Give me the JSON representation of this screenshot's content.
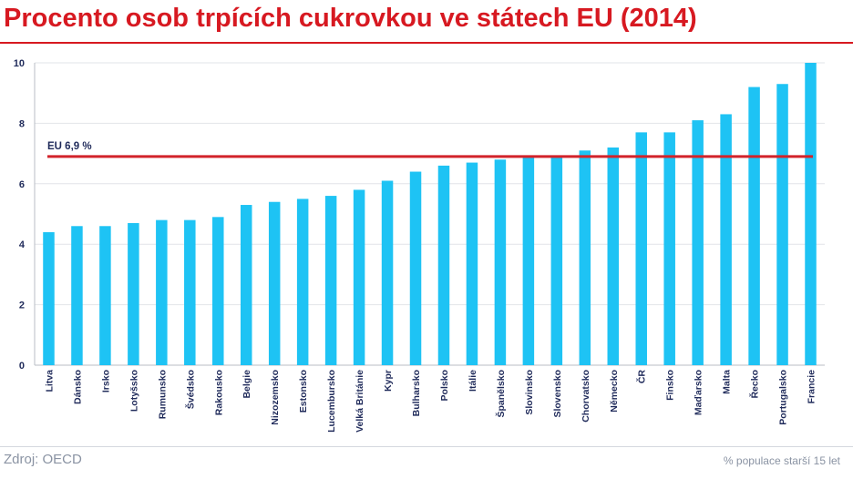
{
  "title": "Procento osob trpících cukrovkou ve státech EU (2014)",
  "source": "Zdroj: OECD",
  "unit_note": "% populace starší 15 let",
  "colors": {
    "title": "#d71921",
    "bar": "#1ec3f4",
    "reference": "#d2232a",
    "axis_text": "#1f2a5a",
    "grid": "#e2e4e8"
  },
  "chart_data": {
    "type": "bar",
    "title": "Procento osob trpících cukrovkou ve státech EU (2014)",
    "xlabel": "",
    "ylabel": "",
    "ylim": [
      0,
      10
    ],
    "yticks": [
      0,
      2,
      4,
      6,
      8,
      10
    ],
    "grid": true,
    "categories": [
      "Litva",
      "Dánsko",
      "Irsko",
      "Lotyšsko",
      "Rumunsko",
      "Švédsko",
      "Rakousko",
      "Belgie",
      "Nizozemsko",
      "Estonsko",
      "Lucembursko",
      "Velká Británie",
      "Kypr",
      "Bulharsko",
      "Polsko",
      "Itálie",
      "Španělsko",
      "Slovinsko",
      "Slovensko",
      "Chorvatsko",
      "Německo",
      "ČR",
      "Finsko",
      "Maďarsko",
      "Malta",
      "Řecko",
      "Portugalsko",
      "Francie"
    ],
    "values": [
      4.4,
      4.6,
      4.6,
      4.7,
      4.8,
      4.8,
      4.9,
      5.3,
      5.4,
      5.5,
      5.6,
      5.8,
      6.1,
      6.4,
      6.6,
      6.7,
      6.8,
      6.9,
      6.9,
      7.1,
      7.2,
      7.7,
      7.7,
      8.1,
      8.3,
      9.2,
      9.3,
      10.0
    ],
    "reference_line": {
      "label": "EU 6,9 %",
      "value": 6.9
    }
  }
}
